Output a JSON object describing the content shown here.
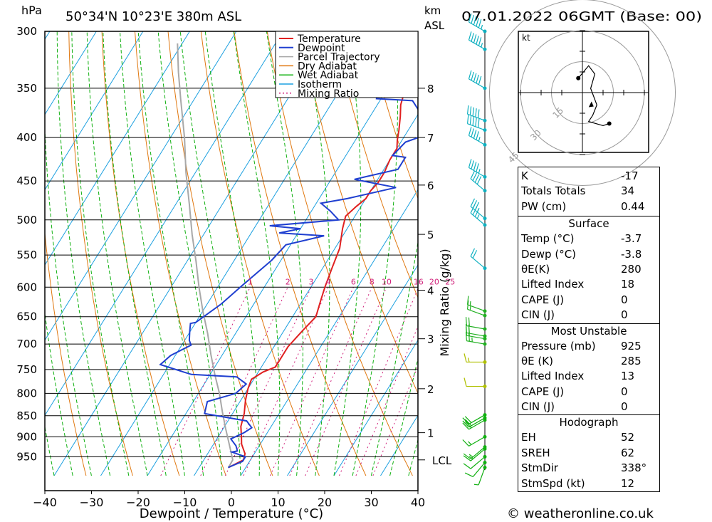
{
  "header": {
    "pressure_unit": "hPa",
    "location": "50°34'N  10°23'E  380m  ASL",
    "height_unit": "km",
    "height_unit2": "ASL",
    "datetime": "07.01.2022  06GMT  (Base: 00)"
  },
  "chart_data": {
    "type": "line",
    "title": "",
    "xlabel": "Dewpoint / Temperature (°C)",
    "ylabel": "hPa",
    "right_label": "Mixing Ratio (g/kg)",
    "xlim": [
      -40,
      40
    ],
    "ylim": [
      300,
      990
    ],
    "y_scale": "log",
    "grid": true,
    "legend_position": "top-center",
    "x_ticks": [
      "−40",
      "−30",
      "−20",
      "−10",
      "0",
      "10",
      "20",
      "30",
      "40"
    ],
    "pressure_ticks": [
      300,
      350,
      400,
      450,
      500,
      550,
      600,
      650,
      700,
      750,
      800,
      850,
      900,
      950
    ],
    "height_ticks_km": [
      {
        "label": "8",
        "p": 350
      },
      {
        "label": "7",
        "p": 400
      },
      {
        "label": "6",
        "p": 455
      },
      {
        "label": "5",
        "p": 520
      },
      {
        "label": "4",
        "p": 605
      },
      {
        "label": "3",
        "p": 690
      },
      {
        "label": "2",
        "p": 790
      },
      {
        "label": "1",
        "p": 890
      },
      {
        "label": "LCL",
        "p": 958
      }
    ],
    "mixing_ratio_labels": [
      "1",
      "2",
      "3",
      "4",
      "6",
      "8",
      "10",
      "16",
      "20",
      "25"
    ],
    "legend": [
      "Temperature",
      "Dewpoint",
      "Parcel Trajectory",
      "Dry Adiabat",
      "Wet Adiabat",
      "Isotherm",
      "Mixing Ratio"
    ],
    "colors": {
      "temperature": "#e02020",
      "dewpoint": "#1f3fd0",
      "parcel": "#a8a8a8",
      "dry_adiabat": "#e07810",
      "wet_adiabat": "#10b010",
      "isotherm": "#1ca0e0",
      "mixing_ratio": "#d0207a"
    },
    "series": [
      {
        "name": "Temperature",
        "points": [
          [
            -3.7,
            978
          ],
          [
            -1.5,
            958
          ],
          [
            -2,
            942
          ],
          [
            -4,
            918
          ],
          [
            -5,
            900
          ],
          [
            -6.5,
            875
          ],
          [
            -7.5,
            845
          ],
          [
            -9,
            815
          ],
          [
            -10,
            790
          ],
          [
            -10.5,
            770
          ],
          [
            -9,
            755
          ],
          [
            -7,
            745
          ],
          [
            -7,
            705
          ],
          [
            -6,
            675
          ],
          [
            -5,
            650
          ],
          [
            -6,
            625
          ],
          [
            -7,
            600
          ],
          [
            -8,
            570
          ],
          [
            -9,
            540
          ],
          [
            -11,
            512
          ],
          [
            -12,
            495
          ],
          [
            -11,
            482
          ],
          [
            -10,
            472
          ],
          [
            -10,
            462
          ],
          [
            -9.5,
            452
          ],
          [
            -9.5,
            440
          ],
          [
            -10,
            425
          ],
          [
            -10,
            412
          ],
          [
            -11,
            403
          ],
          [
            -12,
            392
          ],
          [
            -13.5,
            378
          ],
          [
            -15,
            366
          ],
          [
            -16,
            352
          ],
          [
            -17,
            333
          ],
          [
            -18,
            315
          ],
          [
            -19,
            305
          ],
          [
            -20,
            298
          ]
        ]
      },
      {
        "name": "Dewpoint",
        "points": [
          [
            -3.8,
            978
          ],
          [
            -1.5,
            962
          ],
          [
            -1.5,
            950
          ],
          [
            -5,
            938
          ],
          [
            -4,
            935
          ],
          [
            -5,
            922
          ],
          [
            -7,
            905
          ],
          [
            -5,
            890
          ],
          [
            -4,
            878
          ],
          [
            -6,
            862
          ],
          [
            -16,
            845
          ],
          [
            -17,
            818
          ],
          [
            -12,
            800
          ],
          [
            -11,
            780
          ],
          [
            -14,
            765
          ],
          [
            -24,
            760
          ],
          [
            -26,
            755
          ],
          [
            -32,
            740
          ],
          [
            -31,
            722
          ],
          [
            -28,
            702
          ],
          [
            -29,
            693
          ],
          [
            -30,
            678
          ],
          [
            -31,
            662
          ],
          [
            -30,
            660
          ],
          [
            -27,
            628
          ],
          [
            -25,
            598
          ],
          [
            -22,
            558
          ],
          [
            -21,
            535
          ],
          [
            -14,
            522
          ],
          [
            -24,
            518
          ],
          [
            -20,
            512
          ],
          [
            -27,
            508
          ],
          [
            -13,
            500
          ],
          [
            -16,
            488
          ],
          [
            -19,
            478
          ],
          [
            -14,
            472
          ],
          [
            -5,
            458
          ],
          [
            -15,
            448
          ],
          [
            -7,
            436
          ],
          [
            -7,
            422
          ],
          [
            -10,
            420
          ],
          [
            -9,
            405
          ],
          [
            -6,
            398
          ],
          [
            -8,
            383
          ],
          [
            -10,
            373
          ],
          [
            -13,
            362
          ],
          [
            -21,
            360
          ],
          [
            -23,
            343
          ],
          [
            -24,
            326
          ],
          [
            -24,
            318
          ],
          [
            -19,
            306
          ],
          [
            -18,
            300
          ]
        ]
      },
      {
        "name": "Parcel Trajectory",
        "points": [
          [
            -3.7,
            978
          ],
          [
            -3.8,
            958
          ],
          [
            -6.5,
            920
          ],
          [
            -9.5,
            880
          ],
          [
            -12.5,
            840
          ],
          [
            -15.5,
            800
          ],
          [
            -19,
            760
          ],
          [
            -22.5,
            720
          ],
          [
            -26,
            680
          ],
          [
            -30,
            640
          ],
          [
            -34,
            600
          ],
          [
            -38,
            560
          ],
          [
            -42.5,
            520
          ],
          [
            -47,
            480
          ],
          [
            -52,
            440
          ],
          [
            -57,
            400
          ],
          [
            -63,
            360
          ],
          [
            -67,
            335
          ],
          [
            -71,
            310
          ]
        ]
      }
    ],
    "hodograph": {
      "unit": "kt",
      "ring_labels": [
        "15",
        "30",
        "45"
      ],
      "points": [
        [
          -2,
          7
        ],
        [
          3,
          13
        ],
        [
          6,
          9
        ],
        [
          4,
          2
        ],
        [
          7,
          -6
        ],
        [
          5,
          -11
        ],
        [
          3,
          -14
        ],
        [
          10,
          -16
        ],
        [
          13,
          -15
        ]
      ],
      "storm_motion": [
        2,
        -5
      ]
    },
    "wind_profile": [
      {
        "p": 300,
        "spd": 55,
        "dir": 300
      },
      {
        "p": 315,
        "spd": 55,
        "dir": 300
      },
      {
        "p": 350,
        "spd": 50,
        "dir": 300
      },
      {
        "p": 382,
        "spd": 50,
        "dir": 290
      },
      {
        "p": 392,
        "spd": 50,
        "dir": 290
      },
      {
        "p": 408,
        "spd": 45,
        "dir": 300
      },
      {
        "p": 445,
        "spd": 45,
        "dir": 300
      },
      {
        "p": 462,
        "spd": 40,
        "dir": 310
      },
      {
        "p": 498,
        "spd": 35,
        "dir": 310
      },
      {
        "p": 507,
        "spd": 35,
        "dir": 310
      },
      {
        "p": 570,
        "spd": 20,
        "dir": 310
      },
      {
        "p": 640,
        "spd": 15,
        "dir": 290
      },
      {
        "p": 648,
        "spd": 15,
        "dir": 290
      },
      {
        "p": 672,
        "spd": 20,
        "dir": 280
      },
      {
        "p": 685,
        "spd": 20,
        "dir": 280
      },
      {
        "p": 690,
        "spd": 20,
        "dir": 280
      },
      {
        "p": 700,
        "spd": 25,
        "dir": 280
      },
      {
        "p": 735,
        "spd": 15,
        "dir": 270
      },
      {
        "p": 785,
        "spd": 10,
        "dir": 270
      },
      {
        "p": 848,
        "spd": 20,
        "dir": 240
      },
      {
        "p": 855,
        "spd": 20,
        "dir": 240
      },
      {
        "p": 860,
        "spd": 20,
        "dir": 240
      },
      {
        "p": 900,
        "spd": 15,
        "dir": 240
      },
      {
        "p": 925,
        "spd": 15,
        "dir": 230
      },
      {
        "p": 930,
        "spd": 15,
        "dir": 230
      },
      {
        "p": 950,
        "spd": 10,
        "dir": 230
      },
      {
        "p": 965,
        "spd": 10,
        "dir": 220
      },
      {
        "p": 978,
        "spd": 5,
        "dir": 200
      }
    ]
  },
  "indices": {
    "general": [
      {
        "label": "K",
        "value": "-17"
      },
      {
        "label": "Totals Totals",
        "value": "34"
      },
      {
        "label": "PW (cm)",
        "value": "0.44"
      }
    ],
    "surface_title": "Surface",
    "surface": [
      {
        "label": "Temp (°C)",
        "value": "-3.7"
      },
      {
        "label": "Dewp (°C)",
        "value": "-3.8"
      },
      {
        "label": "θE(K)",
        "value": "280"
      },
      {
        "label": "Lifted Index",
        "value": "18"
      },
      {
        "label": "CAPE (J)",
        "value": "0"
      },
      {
        "label": "CIN (J)",
        "value": "0"
      }
    ],
    "unstable_title": "Most Unstable",
    "unstable": [
      {
        "label": "Pressure (mb)",
        "value": "925"
      },
      {
        "label": "θE (K)",
        "value": "285"
      },
      {
        "label": "Lifted Index",
        "value": "13"
      },
      {
        "label": "CAPE (J)",
        "value": "0"
      },
      {
        "label": "CIN (J)",
        "value": "0"
      }
    ],
    "hodograph_title": "Hodograph",
    "hodograph": [
      {
        "label": "EH",
        "value": "52"
      },
      {
        "label": "SREH",
        "value": "62"
      },
      {
        "label": "StmDir",
        "value": "338°"
      },
      {
        "label": "StmSpd (kt)",
        "value": "12"
      }
    ]
  },
  "footer": {
    "credit": "© weatheronline.co.uk"
  }
}
